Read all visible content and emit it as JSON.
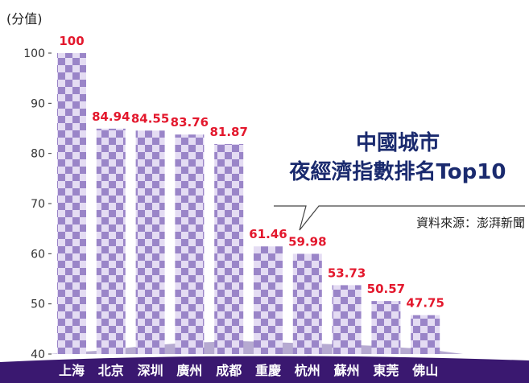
{
  "chart_data": {
    "type": "bar",
    "title_lines": [
      "中國城市",
      "夜經濟指數排名Top10"
    ],
    "source": "資料來源：澎湃新聞",
    "ylabel": "(分值)",
    "ylim": [
      40,
      100
    ],
    "yticks": [
      40,
      50,
      60,
      70,
      80,
      90,
      100
    ],
    "grid": false,
    "categories": [
      "上海",
      "北京",
      "深圳",
      "廣州",
      "成都",
      "重慶",
      "杭州",
      "蘇州",
      "東莞",
      "佛山"
    ],
    "values": [
      100,
      84.94,
      84.55,
      83.76,
      81.87,
      61.46,
      59.98,
      53.73,
      50.57,
      47.75
    ],
    "value_labels": [
      "100",
      "84.94",
      "84.55",
      "83.76",
      "81.87",
      "61.46",
      "59.98",
      "53.73",
      "50.57",
      "47.75"
    ],
    "colors": {
      "bar_check_dark": "#9a85c8",
      "bar_check_light": "#e4dcf3",
      "value_label": "#e3182d",
      "title": "#1a2a6e",
      "footer_band": "#3a1870",
      "skyline": "#7a64ac"
    }
  }
}
